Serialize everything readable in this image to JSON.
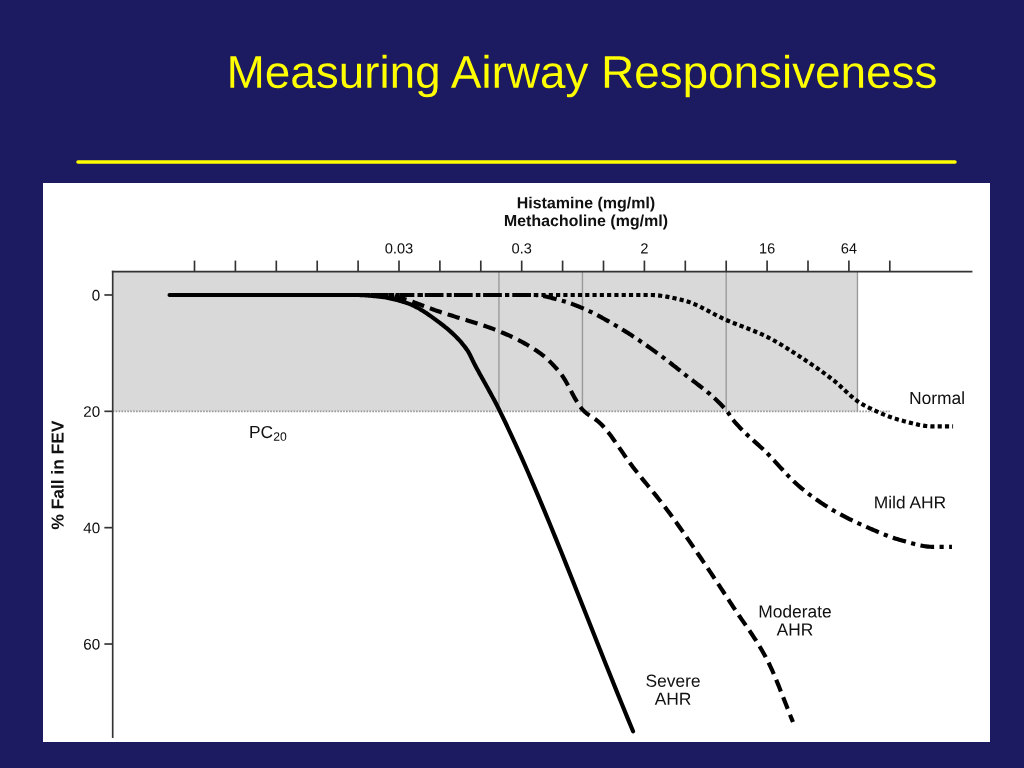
{
  "chart_data": {
    "type": "line",
    "title": "Measuring Airway Responsiveness",
    "xlabel": "Histamine (mg/ml)\nMethacholine (mg/ml)",
    "ylabel": "% Fall in FEV",
    "log": "x",
    "xlim": [
      0.000244140625,
      512
    ],
    "xticks": [
      {
        "value": 0.0009765625,
        "label": null
      },
      {
        "value": 0.001953125,
        "label": null
      },
      {
        "value": 0.00390625,
        "label": null
      },
      {
        "value": 0.0078125,
        "label": null
      },
      {
        "value": 0.015625,
        "label": null
      },
      {
        "value": 0.03125,
        "label": "0.03"
      },
      {
        "value": 0.0625,
        "label": null
      },
      {
        "value": 0.125,
        "label": null
      },
      {
        "value": 0.25,
        "label": "0.3"
      },
      {
        "value": 0.5,
        "label": null
      },
      {
        "value": 1,
        "label": null
      },
      2,
      {
        "value": 4,
        "label": null
      },
      {
        "value": 8,
        "label": null
      },
      16,
      {
        "value": 32,
        "label": null
      },
      64,
      {
        "value": 128,
        "label": null
      }
    ],
    "ylim": [
      76,
      -4
    ],
    "yticks": [
      0,
      20,
      40,
      60
    ],
    "series": [
      {
        "name": "Severe\nAHR",
        "color": "#000000",
        "line_style": "solid",
        "x": [
          0.00064,
          0.0148,
          0.0227,
          0.0359,
          0.0625,
          0.0988,
          0.113,
          0.173,
          1.65
        ],
        "values": [
          0,
          0,
          0.3,
          1.4,
          4.8,
          9.4,
          12,
          20,
          75
        ]
      },
      {
        "name": "Moderate\nAHR",
        "color": "#000000",
        "line_style": "dashed",
        "x": [
          0.00064,
          0.0256,
          0.0317,
          0.0625,
          0.173,
          0.341,
          0.48,
          0.707,
          0.94,
          1.65,
          2.93,
          5.13,
          9.0,
          16,
          24.8
        ],
        "values": [
          0,
          0,
          0.5,
          2.9,
          6.3,
          10,
          13.4,
          19.8,
          22,
          29.6,
          36.9,
          45,
          53.6,
          62.7,
          73.4
        ]
      },
      {
        "name": "Mild AHR",
        "color": "#000000",
        "line_style": "dashdot",
        "x": [
          0.00064,
          0.304,
          0.48,
          0.707,
          1.26,
          2.2,
          3.84,
          8,
          9.0,
          16,
          27.9,
          48.9,
          86.7,
          152,
          267,
          367
        ],
        "values": [
          0,
          0,
          0.9,
          2.3,
          5.4,
          9.1,
          13.4,
          19.8,
          21.5,
          27.2,
          33,
          37,
          39.9,
          42.1,
          43.3,
          43.3
        ]
      },
      {
        "name": "Normal",
        "color": "#000000",
        "line_style": "dotted",
        "x": [
          0.00064,
          2.2,
          3.84,
          8.0,
          16,
          27.9,
          48.9,
          74.6,
          86.7,
          152,
          267,
          374
        ],
        "values": [
          0,
          0,
          0.9,
          4.3,
          7.2,
          10.6,
          14.6,
          18.3,
          19.2,
          21.5,
          22.6,
          22.6
        ]
      }
    ],
    "ref_lines": [
      {
        "axis": "y",
        "value": 20,
        "label": "PC$_{20}$",
        "color": "#9a9a9a",
        "line_style": "dotted"
      },
      {
        "axis": "x",
        "value": 0.17,
        "color": "#9a9a9a"
      },
      {
        "axis": "x",
        "value": 0.7,
        "color": "#9a9a9a"
      },
      {
        "axis": "x",
        "value": 8,
        "color": "#9a9a9a"
      },
      {
        "axis": "x",
        "value": 74,
        "color": "#9a9a9a"
      }
    ],
    "bands": [
      {
        "axis": "y",
        "from": -4,
        "to": 20,
        "color": "#d9d9d9"
      }
    ]
  }
}
